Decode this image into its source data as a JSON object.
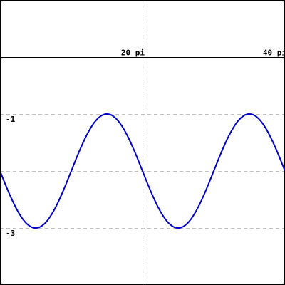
{
  "chart_data": {
    "type": "line",
    "title": "",
    "xlabel": "",
    "ylabel": "",
    "xlim": [
      0,
      125.66
    ],
    "ylim": [
      -4,
      1
    ],
    "grid": true,
    "x_axis_at_y": 0,
    "x_ticks": [
      {
        "value": 62.83,
        "label": "20 pi"
      },
      {
        "value": 125.66,
        "label": "40 pi"
      }
    ],
    "y_ticks": [
      {
        "value": -1,
        "label": "-1"
      },
      {
        "value": -3,
        "label": "-3"
      }
    ],
    "y_gridlines": [
      -1,
      -2,
      -3
    ],
    "series": [
      {
        "color": "#0000cc",
        "function": "-2 + sin(x / 10 + pi)",
        "x": [
          0,
          7.85,
          15.71,
          23.56,
          31.42,
          39.27,
          47.12,
          54.98,
          62.83,
          70.69,
          78.54,
          86.39,
          94.25,
          102.1,
          109.96,
          117.81,
          125.66
        ],
        "y": [
          -2,
          -2.71,
          -3,
          -2.71,
          -2,
          -1.29,
          -1,
          -1.29,
          -2,
          -2.71,
          -3,
          -2.71,
          -2,
          -1.29,
          -1,
          -1.29,
          -2
        ]
      }
    ]
  }
}
